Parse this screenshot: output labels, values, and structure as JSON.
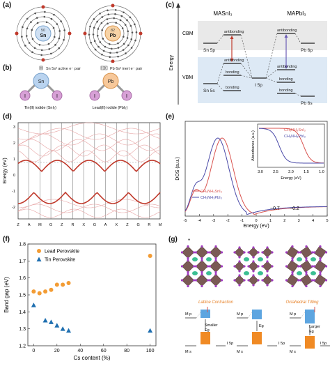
{
  "panels": {
    "a": {
      "label": "(a)",
      "atoms": [
        {
          "symbol": "Sn",
          "number": "50"
        },
        {
          "symbol": "Pb",
          "number": "82"
        }
      ]
    },
    "b": {
      "label": "(b)",
      "sn_note": "Sn 5s² active e⁻ pair",
      "pb_note": "Pb 6s² inert e⁻ pair",
      "center_sn": "Sn",
      "center_pb": "Pb",
      "iodide": "I",
      "caption_sn": "Tin(II) iodide (SnI₂)",
      "caption_pb": "Lead(II) iodide (PbI₂)"
    },
    "c": {
      "label": "(c)",
      "title_left": "MASnI₃",
      "title_right": "MAPbI₃",
      "cbm": "CBM",
      "vbm": "VBM",
      "energy": "Energy",
      "antibonding": "antibonding",
      "bonding": "bonding",
      "sn5p": "Sn 5p",
      "sn5s": "Sn 5s",
      "pb6p": "Pb 6p",
      "pb6s": "Pb 6s",
      "i5p": "I 5p"
    },
    "d": {
      "label": "(d)",
      "ylabel": "Energy (eV)",
      "yticks": [
        "3",
        "2",
        "1",
        "0",
        "-1",
        "-2"
      ],
      "kpoints": [
        "Z",
        "A",
        "M",
        "G",
        "Z",
        "R",
        "X",
        "G",
        "A",
        "X",
        "Z",
        "G",
        "R",
        "M"
      ]
    },
    "e": {
      "label": "(e)",
      "ylabel": "DOS (a.u.)",
      "xlabel": "Energy (eV)",
      "xticks": [
        "-5",
        "-4",
        "-3",
        "-2",
        "-1",
        "0",
        "1",
        "2",
        "3",
        "4",
        "5"
      ],
      "legend": [
        "CH₃NH₃SnI₃",
        "CH₃NH₃PbI₃"
      ],
      "annot1": "~0.7",
      "annot2": "~0.2",
      "inset": {
        "ylabel": "Absorbance (a.u.)",
        "xlabel": "Energy (eV)",
        "xticks": [
          "3.0",
          "2.5",
          "2.0",
          "1.5",
          "1.0"
        ],
        "legend": [
          "CH₃NH₃SnI₃",
          "CH₃NH₃PbI₃"
        ]
      }
    },
    "f": {
      "label": "(f)"
    },
    "g": {
      "label": "(g)",
      "caption1": "Lattice Contraction",
      "caption2": "Octahedral Tilting",
      "smaller": "Smaller",
      "eg": "Eg",
      "larger": "Larger",
      "level_m": "M p",
      "level_i": "I 5p",
      "level_ms": "M s",
      "star": "*"
    }
  },
  "colors": {
    "lead": "#f39c34",
    "tin": "#1f6fb0",
    "red": "#c0392b",
    "sn_red": "#d9534f",
    "pb_blue": "#4a4aa8"
  },
  "chart_data": {
    "type": "scatter",
    "xlabel": "Cs content (%)",
    "ylabel": "Band gap (eV)",
    "xlim": [
      -5,
      105
    ],
    "ylim": [
      1.2,
      1.8
    ],
    "xticks": [
      0,
      20,
      40,
      60,
      80,
      100
    ],
    "yticks": [
      1.2,
      1.3,
      1.4,
      1.5,
      1.6,
      1.7,
      1.8
    ],
    "legend_position": "top-left",
    "series": [
      {
        "name": "Lead Perovskite",
        "marker": "circle",
        "color": "#f39c34",
        "x": [
          0,
          5,
          10,
          15,
          20,
          25,
          30,
          100
        ],
        "y": [
          1.52,
          1.51,
          1.52,
          1.53,
          1.56,
          1.56,
          1.57,
          1.73
        ]
      },
      {
        "name": "Tin Perovskite",
        "marker": "triangle",
        "color": "#1f6fb0",
        "x": [
          0,
          10,
          15,
          20,
          25,
          30,
          100
        ],
        "y": [
          1.44,
          1.35,
          1.34,
          1.32,
          1.3,
          1.29,
          1.29
        ]
      }
    ]
  }
}
